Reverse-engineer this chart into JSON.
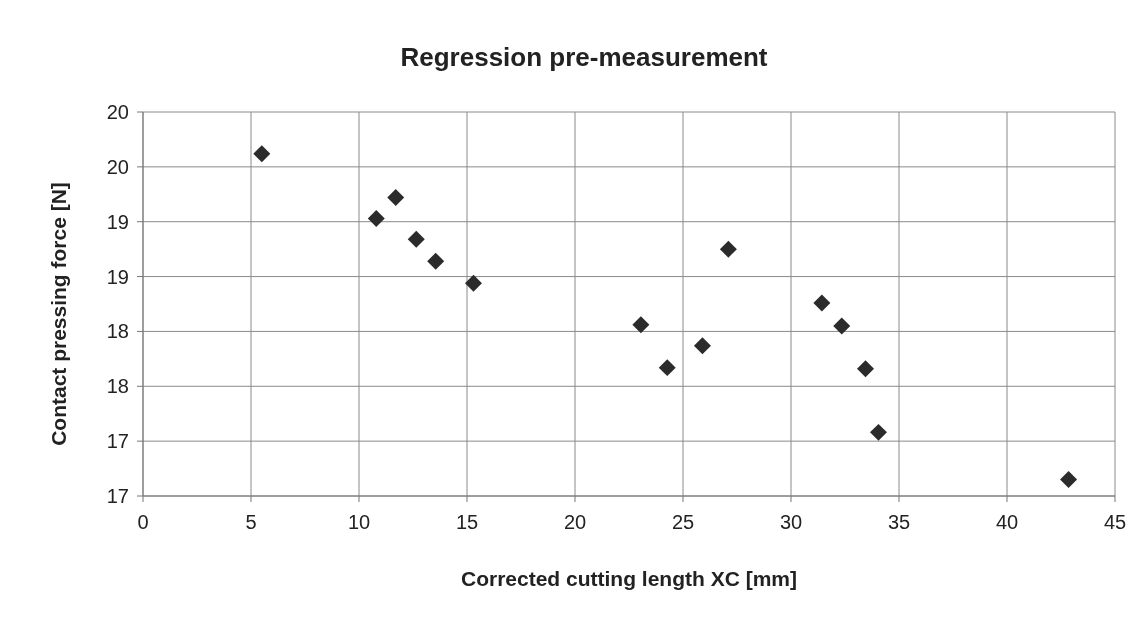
{
  "chart_data": {
    "type": "scatter",
    "title": "Regression pre-measurement",
    "xlabel": "Corrected cutting length XC [mm]",
    "ylabel": "Contact pressing force [N]",
    "xlim": [
      0,
      45
    ],
    "xticks": [
      0,
      5,
      10,
      15,
      20,
      25,
      30,
      35,
      40,
      45
    ],
    "ylim": [
      17,
      20.5
    ],
    "yticks": [
      {
        "value": 17,
        "label": "17"
      },
      {
        "value": 17.5,
        "label": "17"
      },
      {
        "value": 18,
        "label": "18"
      },
      {
        "value": 18.5,
        "label": "18"
      },
      {
        "value": 19,
        "label": "19"
      },
      {
        "value": 19.5,
        "label": "19"
      },
      {
        "value": 20,
        "label": "20"
      },
      {
        "value": 20.5,
        "label": "20"
      }
    ],
    "grid": true,
    "marker": "diamond",
    "series": [
      {
        "color": "#2b2b2b",
        "x": [
          5.5,
          10.8,
          11.7,
          12.65,
          13.55,
          15.3,
          23.05,
          24.27,
          25.9,
          27.1,
          31.43,
          32.35,
          33.45,
          34.05,
          42.85
        ],
        "values": [
          20.12,
          19.53,
          19.72,
          19.34,
          19.14,
          18.94,
          18.56,
          18.17,
          18.37,
          19.25,
          18.76,
          18.55,
          18.16,
          17.58,
          17.15
        ]
      }
    ]
  }
}
